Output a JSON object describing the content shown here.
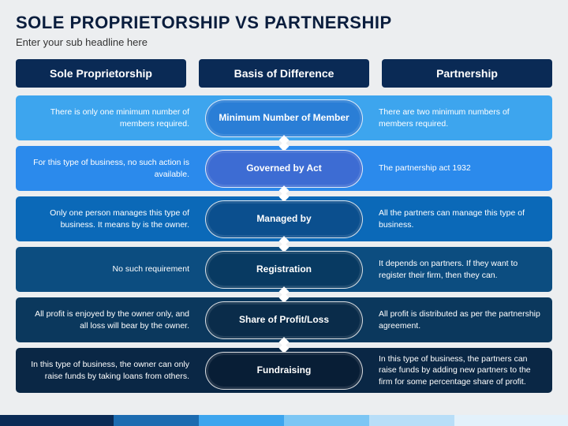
{
  "title": "Sole Proprietorship vs Partnership",
  "subheadline": "Enter your sub headline here",
  "headers": {
    "left": "Sole Proprietorship",
    "center": "Basis of Difference",
    "right": "Partnership",
    "bg": "#0a2a55"
  },
  "rows": [
    {
      "left": "There is only one minimum number of members required.",
      "label": "Minimum Number of Member",
      "right": "There are two minimum numbers of members required.",
      "bg": "#3da5ee",
      "pill": "#2a7ed6"
    },
    {
      "left": "For this type of business, no such action is available.",
      "label": "Governed by Act",
      "right": "The partnership act 1932",
      "bg": "#2b8aec",
      "pill": "#3d6cd3"
    },
    {
      "left": "Only one person manages this type of business. It means by is the owner.",
      "label": "Managed by",
      "right": "All the partners can manage this type of business.",
      "bg": "#0b69b8",
      "pill": "#0b4f8e"
    },
    {
      "left": "No such requirement",
      "label": "Registration",
      "right": "It depends on partners. If they want to register their firm, then they can.",
      "bg": "#0c4d80",
      "pill": "#083a62"
    },
    {
      "left": "All profit is enjoyed by the owner only, and all loss will bear by the owner.",
      "label": "Share of Profit/Loss",
      "right": "All profit is distributed as per the partnership agreement.",
      "bg": "#0b385d",
      "pill": "#0a2c4a"
    },
    {
      "left": "In this type of business, the owner can only raise funds by taking loans from others.",
      "label": "Fundraising",
      "right": "In this type of business, the partners can raise funds by adding new partners to the firm for some percentage share of profit.",
      "bg": "#0a2745",
      "pill": "#081e36"
    }
  ],
  "bottombar": [
    {
      "c": "#0a2a55",
      "w": 20
    },
    {
      "c": "#1c6bb0",
      "w": 15
    },
    {
      "c": "#3da5ee",
      "w": 15
    },
    {
      "c": "#7cc6f4",
      "w": 15
    },
    {
      "c": "#b8def8",
      "w": 15
    },
    {
      "c": "#e3f1fb",
      "w": 20
    }
  ]
}
